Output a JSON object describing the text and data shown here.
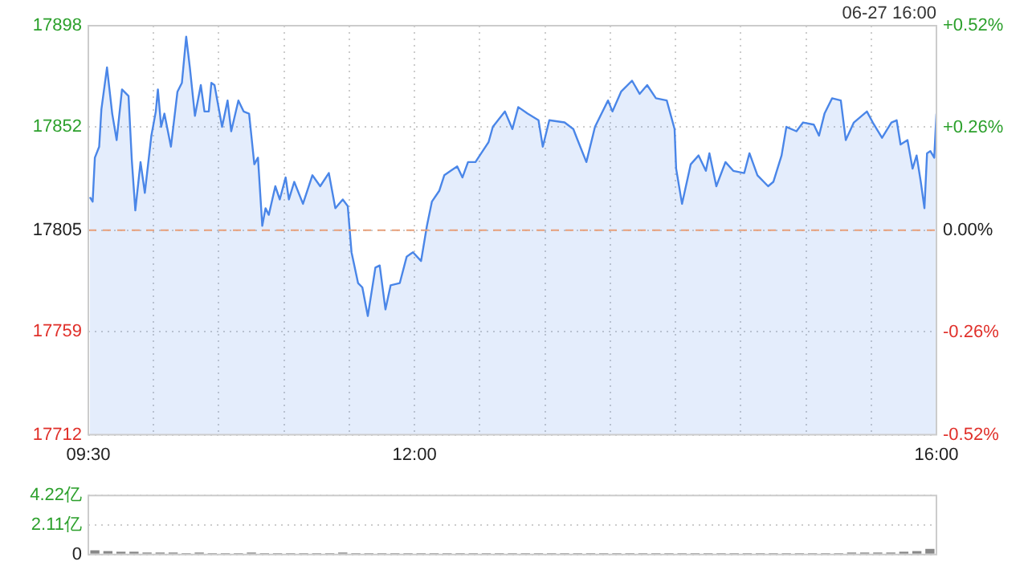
{
  "chart_data": [
    {
      "type": "area",
      "annotations": [
        "06-27 16:00"
      ],
      "x": [
        9.512,
        9.533,
        9.55,
        9.583,
        9.6,
        9.643,
        9.683,
        9.717,
        9.758,
        9.808,
        9.833,
        9.86,
        9.9,
        9.933,
        9.983,
        10.017,
        10.033,
        10.058,
        10.083,
        10.133,
        10.183,
        10.217,
        10.25,
        10.278,
        10.317,
        10.362,
        10.39,
        10.423,
        10.443,
        10.467,
        10.525,
        10.567,
        10.595,
        10.65,
        10.69,
        10.732,
        10.772,
        10.8,
        10.833,
        10.858,
        10.883,
        10.933,
        10.967,
        11.012,
        11.037,
        11.078,
        11.145,
        11.217,
        11.277,
        11.343,
        11.393,
        11.45,
        11.488,
        11.517,
        11.567,
        11.6,
        11.642,
        11.7,
        11.733,
        11.777,
        11.817,
        11.887,
        11.94,
        11.988,
        12.05,
        12.095,
        12.133,
        12.19,
        12.228,
        12.277,
        12.327,
        12.367,
        12.41,
        12.467,
        12.5,
        12.567,
        12.6,
        12.693,
        12.75,
        12.795,
        12.867,
        12.95,
        12.983,
        13.033,
        13.15,
        13.217,
        13.25,
        13.317,
        13.383,
        13.433,
        13.483,
        13.517,
        13.583,
        13.667,
        13.725,
        13.783,
        13.85,
        13.933,
        13.993,
        14.005,
        14.05,
        14.117,
        14.177,
        14.233,
        14.26,
        14.313,
        14.383,
        14.443,
        14.527,
        14.567,
        14.628,
        14.71,
        14.75,
        14.813,
        14.85,
        14.927,
        14.978,
        15.06,
        15.1,
        15.142,
        15.2,
        15.267,
        15.305,
        15.367,
        15.467,
        15.512,
        15.583,
        15.655,
        15.695,
        15.725,
        15.778,
        15.817,
        15.848,
        15.88,
        15.908,
        15.928,
        15.953,
        15.983,
        16.0
      ],
      "series": [
        {
          "color": "#4a86e8",
          "values": [
            17820,
            17818,
            17838,
            17843,
            17860,
            17879,
            17858,
            17846,
            17869,
            17866,
            17837,
            17814,
            17836,
            17822,
            17848,
            17859,
            17869,
            17852,
            17858,
            17843,
            17868,
            17872,
            17893,
            17879,
            17857,
            17871,
            17859,
            17859,
            17872,
            17871,
            17852,
            17864,
            17850,
            17864,
            17859,
            17858,
            17835,
            17838,
            17807,
            17815,
            17812,
            17825,
            17819,
            17829,
            17819,
            17827,
            17817,
            17830,
            17825,
            17831,
            17815,
            17819,
            17816,
            17795,
            17781,
            17779,
            17766,
            17788,
            17789,
            17769,
            17780,
            17781,
            17793,
            17795,
            17791,
            17807,
            17818,
            17823,
            17830,
            17832,
            17834,
            17829,
            17836,
            17836,
            17839,
            17845,
            17852,
            17859,
            17851,
            17861,
            17858,
            17855,
            17843,
            17855,
            17854,
            17851,
            17846,
            17836,
            17852,
            17858,
            17864,
            17859,
            17868,
            17873,
            17867,
            17871,
            17865,
            17864,
            17851,
            17833,
            17817,
            17835,
            17839,
            17832,
            17840,
            17825,
            17836,
            17832,
            17831,
            17840,
            17830,
            17825,
            17827,
            17839,
            17852,
            17850,
            17854,
            17853,
            17848,
            17858,
            17865,
            17864,
            17846,
            17854,
            17859,
            17854,
            17847,
            17854,
            17855,
            17844,
            17846,
            17833,
            17839,
            17827,
            17815,
            17840,
            17841,
            17838,
            17858
          ]
        }
      ],
      "xlim": [
        9.5,
        16
      ],
      "xticks": [
        {
          "value": 9.5,
          "label": "09:30"
        },
        {
          "value": 10,
          "label": null
        },
        {
          "value": 10.5,
          "label": null
        },
        {
          "value": 11,
          "label": null
        },
        {
          "value": 11.5,
          "label": null
        },
        {
          "value": 12,
          "label": "12:00"
        },
        {
          "value": 12.5,
          "label": null
        },
        {
          "value": 13,
          "label": null
        },
        {
          "value": 13.5,
          "label": null
        },
        {
          "value": 14,
          "label": null
        },
        {
          "value": 14.5,
          "label": null
        },
        {
          "value": 15,
          "label": null
        },
        {
          "value": 15.5,
          "label": null
        },
        {
          "value": 16,
          "label": "16:00"
        }
      ],
      "ylim": [
        17712,
        17898
      ],
      "yticks": [
        17712,
        17759,
        17805,
        17852,
        17898
      ],
      "y2lim": [
        -0.52,
        0.52
      ],
      "y2ticks": [
        {
          "value": -0.52,
          "label": "-0.52%"
        },
        {
          "value": -0.26,
          "label": "-0.26%"
        },
        {
          "value": 0,
          "label": "0.00%"
        },
        {
          "value": 0.26,
          "label": "+0.26%"
        },
        {
          "value": 0.52,
          "label": "+0.52%"
        }
      ],
      "ref_lines": [
        {
          "axis": "y",
          "value": 17805,
          "color": "#e8a07a",
          "line_style": "dashed"
        }
      ],
      "grid": true
    },
    {
      "type": "bar",
      "categories": [
        null,
        null,
        null,
        null,
        null,
        null,
        null,
        null,
        null,
        null,
        null,
        null,
        null,
        null,
        null,
        null,
        null,
        null,
        null,
        null,
        null,
        null,
        null,
        null,
        null,
        null,
        null,
        null,
        null,
        null,
        null,
        null,
        null,
        null,
        null,
        null,
        null,
        null,
        null,
        null,
        null,
        null,
        null,
        null,
        null,
        null,
        null,
        null,
        null,
        null,
        null,
        null,
        null,
        null,
        null,
        null,
        null,
        null,
        null,
        null,
        null,
        null,
        null,
        null,
        null
      ],
      "values": [
        0.3,
        0.25,
        0.2,
        0.2,
        0.15,
        0.15,
        0.15,
        0.1,
        0.15,
        0.1,
        0.1,
        0.1,
        0.15,
        0.1,
        0.1,
        0.1,
        0.1,
        0.1,
        0.1,
        0.15,
        0.1,
        0.1,
        0.1,
        0.1,
        0.1,
        0.1,
        0.1,
        0.1,
        0.1,
        0.1,
        0.1,
        0.1,
        0.1,
        0.1,
        0.1,
        0.1,
        0.1,
        0.1,
        0.1,
        0.1,
        0.1,
        0.1,
        0.1,
        0.1,
        0.1,
        0.1,
        0.1,
        0.1,
        0.1,
        0.1,
        0.1,
        0.1,
        0.1,
        0.1,
        0.1,
        0.1,
        0.1,
        0.1,
        0.15,
        0.15,
        0.15,
        0.15,
        0.2,
        0.25,
        0.4
      ],
      "color": "#888888",
      "ylim": [
        0,
        4.22
      ],
      "yticks": [
        0,
        {
          "value": 2.11,
          "label": "2.11亿"
        },
        {
          "value": 4.22,
          "label": "4.22亿"
        }
      ],
      "grid": "y"
    }
  ]
}
